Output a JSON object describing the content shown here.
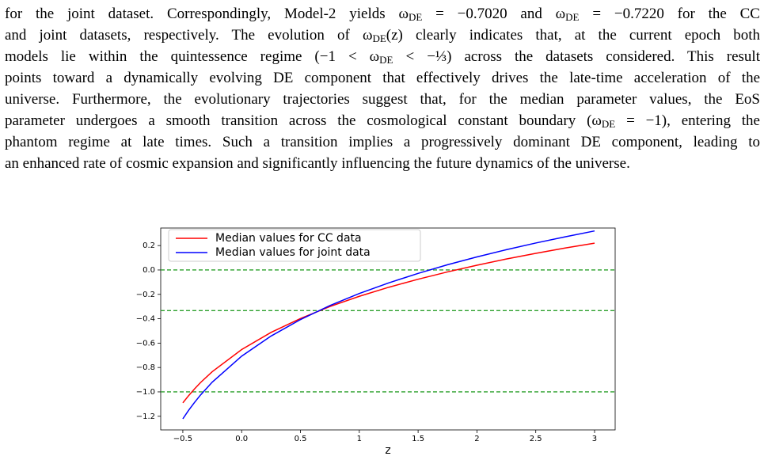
{
  "paragraph": [
    [
      "for the joint dataset. Correspondingly, Model-2 yields ω",
      {
        "sub": "DE"
      },
      " = −0.7020 and ω",
      {
        "sub": "DE"
      },
      " = −0.7220 for the CC"
    ],
    [
      "and joint datasets, respectively. The evolution of ω",
      {
        "sub": "DE"
      },
      "(z) clearly indicates that, at the current epoch both"
    ],
    [
      "models lie within the quintessence regime (−1 < ω",
      {
        "sub": "DE"
      },
      " < −⅓) across the datasets considered. This result"
    ],
    [
      "points toward a dynamically evolving DE component that effectively drives the late-time acceleration of the"
    ],
    [
      "universe. Furthermore, the evolutionary trajectories suggest that, for the median parameter values, the EoS"
    ],
    [
      "parameter undergoes a smooth transition across the cosmological constant boundary (ω",
      {
        "sub": "DE"
      },
      " = −1), entering the"
    ],
    [
      "phantom regime at late times. Such a transition implies a progressively dominant DE component, leading to"
    ],
    [
      "an enhanced rate of cosmic expansion and significantly influencing the future dynamics of the universe."
    ]
  ],
  "chart_data": {
    "type": "line",
    "xlabel": "z",
    "x": [
      -0.5,
      -0.45,
      -0.4,
      -0.35,
      -0.25,
      0,
      0.25,
      0.5,
      0.75,
      1.0,
      1.25,
      1.5,
      1.75,
      2.0,
      2.25,
      2.5,
      2.75,
      3.0
    ],
    "series": [
      {
        "name": "Median values for CC data",
        "color": "#ff0000",
        "values": [
          -1.09,
          -1.03,
          -0.975,
          -0.924,
          -0.834,
          -0.653,
          -0.512,
          -0.398,
          -0.3,
          -0.216,
          -0.142,
          -0.076,
          -0.016,
          0.039,
          0.09,
          0.136,
          0.18,
          0.22
        ]
      },
      {
        "name": "Median values for joint data",
        "color": "#0000ff",
        "values": [
          -1.221,
          -1.15,
          -1.086,
          -1.026,
          -0.92,
          -0.707,
          -0.542,
          -0.407,
          -0.292,
          -0.193,
          -0.106,
          -0.028,
          0.043,
          0.107,
          0.166,
          0.221,
          0.272,
          0.32
        ]
      }
    ],
    "hlines": [
      0,
      -0.3333,
      -1
    ],
    "hline_color": "#2ca02c",
    "xlim": [
      -0.688,
      3.175
    ],
    "ylim": [
      -1.312,
      0.344
    ],
    "xticks": [
      {
        "value": -0.5,
        "label": "−0.5"
      },
      {
        "value": 0,
        "label": "0.0"
      },
      0.5,
      1.0,
      1.5,
      2.0,
      2.5,
      3.0
    ],
    "yticks": [
      {
        "value": -1.2,
        "label": "−1.2"
      },
      {
        "value": -1.0,
        "label": "−1.0"
      },
      {
        "value": -0.8,
        "label": "−0.8"
      },
      {
        "value": -0.6,
        "label": "−0.6"
      },
      {
        "value": -0.4,
        "label": "−0.4"
      },
      {
        "value": -0.2,
        "label": "−0.2"
      },
      {
        "value": 0,
        "label": "0.0"
      },
      0.2
    ],
    "legend": "upper left"
  }
}
